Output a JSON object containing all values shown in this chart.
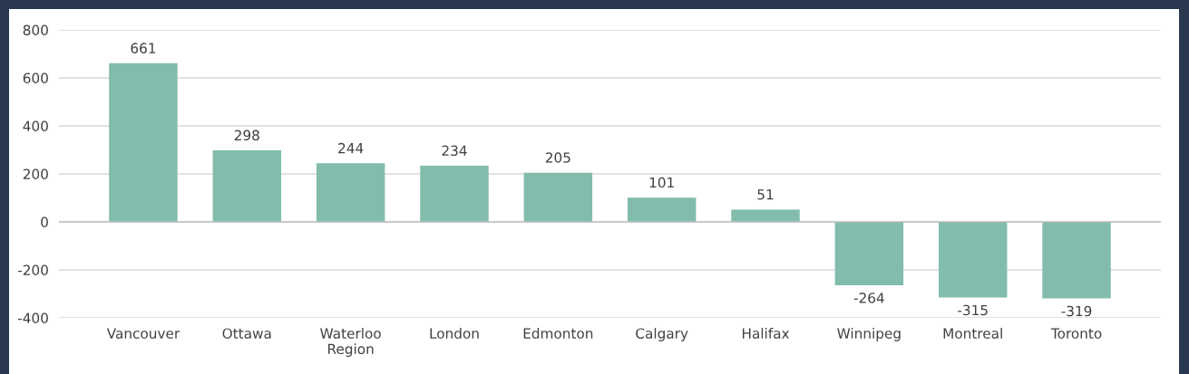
{
  "chart_data": {
    "type": "bar",
    "categories": [
      "Vancouver",
      "Ottawa",
      "Waterloo\nRegion",
      "London",
      "Edmonton",
      "Calgary",
      "Halifax",
      "Winnipeg",
      "Montreal",
      "Toronto"
    ],
    "values": [
      661,
      298,
      244,
      234,
      205,
      101,
      51,
      -264,
      -315,
      -319
    ],
    "color": "#82bcad",
    "ylim": [
      -400,
      800
    ],
    "yticks": [
      -400,
      -200,
      0,
      200,
      400,
      600,
      800
    ],
    "grid": "y",
    "data_labels": true
  }
}
